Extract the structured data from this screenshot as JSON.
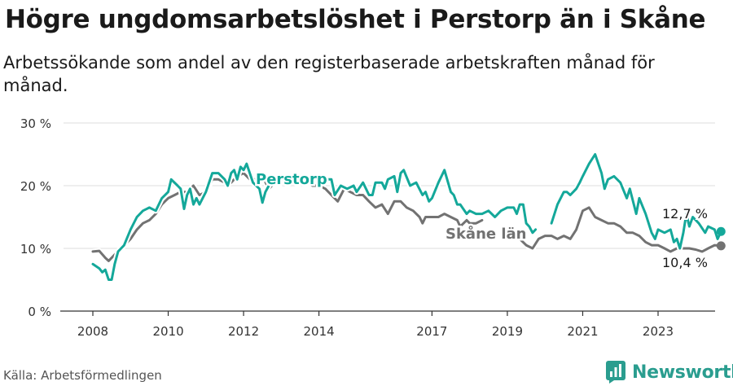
{
  "title": "Högre ungdomsarbetslöshet i Perstorp än i Skåne",
  "subtitle": "Arbetssökande som andel av den registerbaserade arbetskraften månad för månad.",
  "source": "Källa: Arbetsförmedlingen",
  "brand": "Newsworthy",
  "colors": {
    "perstorp": "#14a89a",
    "skane": "#727272",
    "grid": "#dcdcdc",
    "axis": "#333333",
    "brand": "#2a9d8f"
  },
  "chart_data": {
    "type": "line",
    "title": "Högre ungdomsarbetslöshet i Perstorp än i Skåne",
    "xlabel": "",
    "ylabel": "",
    "ylim": [
      0,
      30
    ],
    "xlim": [
      2007.4,
      2025.3
    ],
    "yticks": [
      0,
      10,
      20,
      30
    ],
    "ytick_labels": [
      "0 %",
      "10 %",
      "20 %",
      "30 %"
    ],
    "xticks": [
      2008,
      2010,
      2012,
      2014,
      2017,
      2019,
      2021,
      2023
    ],
    "xtick_labels": [
      "2008",
      "2010",
      "2012",
      "2014",
      "2017",
      "2019",
      "2021",
      "2023"
    ],
    "grid": true,
    "annotations": [
      {
        "text": "12,7 %",
        "series": "Perstorp",
        "x": 2023.75,
        "y": 12.7
      },
      {
        "text": "10,4 %",
        "series": "Skåne län",
        "x": 2023.75,
        "y": 10.4
      }
    ],
    "series": [
      {
        "name": "Perstorp",
        "label": "Perstorp",
        "color": "#14a89a",
        "points": [
          [
            2008.0,
            7.5
          ],
          [
            2008.17,
            6.8
          ],
          [
            2008.25,
            6.2
          ],
          [
            2008.33,
            6.6
          ],
          [
            2008.42,
            5.0
          ],
          [
            2008.5,
            5.0
          ],
          [
            2008.58,
            7.5
          ],
          [
            2008.67,
            9.5
          ],
          [
            2008.83,
            10.5
          ],
          [
            2009.0,
            13.0
          ],
          [
            2009.17,
            15.0
          ],
          [
            2009.33,
            16.0
          ],
          [
            2009.5,
            16.5
          ],
          [
            2009.67,
            16.0
          ],
          [
            2009.83,
            18.0
          ],
          [
            2010.0,
            19.0
          ],
          [
            2010.08,
            21.0
          ],
          [
            2010.25,
            20.0
          ],
          [
            2010.33,
            19.5
          ],
          [
            2010.42,
            16.3
          ],
          [
            2010.5,
            18.5
          ],
          [
            2010.58,
            19.5
          ],
          [
            2010.67,
            17.0
          ],
          [
            2010.75,
            18.0
          ],
          [
            2010.83,
            17.0
          ],
          [
            2011.0,
            19.0
          ],
          [
            2011.17,
            22.0
          ],
          [
            2011.33,
            22.0
          ],
          [
            2011.5,
            21.0
          ],
          [
            2011.58,
            20.0
          ],
          [
            2011.67,
            22.0
          ],
          [
            2011.75,
            22.5
          ],
          [
            2011.83,
            21.0
          ],
          [
            2011.92,
            23.0
          ],
          [
            2012.0,
            22.5
          ],
          [
            2012.08,
            23.5
          ],
          [
            2012.25,
            20.5
          ],
          [
            2012.42,
            19.5
          ],
          [
            2012.5,
            17.3
          ],
          [
            2012.58,
            19.0
          ],
          [
            2012.67,
            20.0
          ]
        ],
        "points_b": [
          [
            2014.17,
            21.0
          ],
          [
            2014.33,
            21.0
          ],
          [
            2014.42,
            18.5
          ],
          [
            2014.58,
            20.0
          ],
          [
            2014.75,
            19.5
          ],
          [
            2014.92,
            20.0
          ],
          [
            2015.0,
            19.0
          ],
          [
            2015.17,
            20.5
          ],
          [
            2015.33,
            18.5
          ],
          [
            2015.42,
            18.5
          ],
          [
            2015.5,
            20.5
          ],
          [
            2015.67,
            20.5
          ],
          [
            2015.75,
            19.5
          ],
          [
            2015.83,
            21.0
          ],
          [
            2016.0,
            21.5
          ],
          [
            2016.08,
            19.0
          ],
          [
            2016.17,
            22.0
          ],
          [
            2016.25,
            22.5
          ],
          [
            2016.42,
            20.0
          ],
          [
            2016.58,
            20.5
          ],
          [
            2016.75,
            18.5
          ],
          [
            2016.83,
            19.0
          ],
          [
            2016.92,
            17.5
          ],
          [
            2017.0,
            18.0
          ],
          [
            2017.17,
            20.5
          ],
          [
            2017.33,
            22.5
          ],
          [
            2017.5,
            19.0
          ],
          [
            2017.58,
            18.5
          ],
          [
            2017.67,
            17.0
          ],
          [
            2017.75,
            17.0
          ],
          [
            2017.92,
            15.5
          ],
          [
            2018.0,
            16.0
          ],
          [
            2018.17,
            15.5
          ],
          [
            2018.33,
            15.5
          ],
          [
            2018.5,
            16.0
          ],
          [
            2018.67,
            15.0
          ],
          [
            2018.83,
            16.0
          ],
          [
            2019.0,
            16.5
          ],
          [
            2019.17,
            16.5
          ],
          [
            2019.25,
            15.5
          ],
          [
            2019.33,
            17.0
          ],
          [
            2019.42,
            17.0
          ],
          [
            2019.5,
            14.0
          ],
          [
            2019.58,
            13.5
          ],
          [
            2019.67,
            12.5
          ],
          [
            2019.75,
            13.0
          ]
        ],
        "points_c": [
          [
            2020.17,
            14.0
          ],
          [
            2020.33,
            17.0
          ],
          [
            2020.5,
            19.0
          ],
          [
            2020.58,
            19.0
          ],
          [
            2020.67,
            18.5
          ],
          [
            2020.83,
            19.5
          ],
          [
            2020.92,
            20.5
          ],
          [
            2021.0,
            21.5
          ],
          [
            2021.17,
            23.5
          ],
          [
            2021.33,
            25.0
          ],
          [
            2021.5,
            22.0
          ],
          [
            2021.58,
            19.5
          ],
          [
            2021.67,
            21.0
          ],
          [
            2021.83,
            21.5
          ],
          [
            2022.0,
            20.5
          ],
          [
            2022.17,
            18.0
          ],
          [
            2022.25,
            19.5
          ],
          [
            2022.42,
            15.5
          ],
          [
            2022.5,
            18.0
          ],
          [
            2022.67,
            15.5
          ],
          [
            2022.83,
            12.5
          ],
          [
            2022.92,
            11.5
          ],
          [
            2023.0,
            13.0
          ],
          [
            2023.17,
            12.5
          ],
          [
            2023.33,
            13.0
          ],
          [
            2023.42,
            11.0
          ],
          [
            2023.5,
            11.5
          ],
          [
            2023.58,
            10.0
          ],
          [
            2023.67,
            12.5
          ],
          [
            2023.75,
            15.5
          ],
          [
            2023.83,
            13.5
          ],
          [
            2023.92,
            15.0
          ],
          [
            2024.08,
            14.0
          ],
          [
            2024.25,
            12.5
          ],
          [
            2024.33,
            13.5
          ],
          [
            2024.5,
            13.0
          ],
          [
            2024.58,
            11.5
          ],
          [
            2024.67,
            12.7
          ]
        ]
      },
      {
        "name": "Skåne län",
        "label": "Skåne län",
        "color": "#727272",
        "points": [
          [
            2008.0,
            9.5
          ],
          [
            2008.17,
            9.6
          ],
          [
            2008.33,
            8.5
          ],
          [
            2008.42,
            8.0
          ],
          [
            2008.58,
            9.0
          ],
          [
            2008.75,
            10.0
          ],
          [
            2009.0,
            11.5
          ],
          [
            2009.17,
            13.0
          ],
          [
            2009.33,
            14.0
          ],
          [
            2009.5,
            14.5
          ],
          [
            2009.67,
            15.5
          ],
          [
            2009.83,
            17.0
          ],
          [
            2010.0,
            18.0
          ],
          [
            2010.17,
            18.5
          ],
          [
            2010.33,
            19.0
          ],
          [
            2010.5,
            19.0
          ],
          [
            2010.67,
            20.0
          ],
          [
            2010.83,
            18.5
          ],
          [
            2011.0,
            19.0
          ],
          [
            2011.17,
            21.0
          ],
          [
            2011.33,
            21.0
          ],
          [
            2011.5,
            20.5
          ],
          [
            2011.67,
            20.5
          ],
          [
            2011.83,
            21.5
          ],
          [
            2012.0,
            22.0
          ],
          [
            2012.17,
            21.0
          ],
          [
            2012.33,
            21.0
          ],
          [
            2012.5,
            21.5
          ],
          [
            2012.67,
            19.5
          ],
          [
            2012.83,
            20.5
          ],
          [
            2013.0,
            21.0
          ],
          [
            2013.17,
            21.5
          ],
          [
            2013.33,
            21.0
          ],
          [
            2013.5,
            21.0
          ],
          [
            2013.67,
            20.5
          ],
          [
            2013.83,
            20.0
          ],
          [
            2014.0,
            20.0
          ],
          [
            2014.17,
            19.5
          ],
          [
            2014.33,
            18.5
          ],
          [
            2014.5,
            17.5
          ],
          [
            2014.67,
            19.5
          ],
          [
            2014.83,
            19.0
          ],
          [
            2015.0,
            18.5
          ],
          [
            2015.17,
            18.5
          ],
          [
            2015.33,
            17.5
          ],
          [
            2015.5,
            16.5
          ],
          [
            2015.67,
            17.0
          ],
          [
            2015.83,
            15.5
          ],
          [
            2016.0,
            17.5
          ],
          [
            2016.17,
            17.5
          ],
          [
            2016.33,
            16.5
          ],
          [
            2016.5,
            16.0
          ],
          [
            2016.67,
            15.0
          ],
          [
            2016.75,
            14.0
          ],
          [
            2016.83,
            15.0
          ],
          [
            2017.0,
            15.0
          ],
          [
            2017.17,
            15.0
          ],
          [
            2017.33,
            15.5
          ],
          [
            2017.5,
            15.0
          ],
          [
            2017.67,
            14.5
          ],
          [
            2017.75,
            13.5
          ],
          [
            2017.92,
            14.5
          ],
          [
            2018.0,
            14.0
          ],
          [
            2018.17,
            14.0
          ],
          [
            2018.33,
            14.5
          ]
        ],
        "points_b": [
          [
            2019.33,
            11.5
          ],
          [
            2019.5,
            10.5
          ],
          [
            2019.67,
            10.0
          ],
          [
            2019.83,
            11.5
          ],
          [
            2020.0,
            12.0
          ],
          [
            2020.17,
            12.0
          ],
          [
            2020.33,
            11.5
          ],
          [
            2020.5,
            12.0
          ],
          [
            2020.67,
            11.5
          ],
          [
            2020.83,
            13.0
          ],
          [
            2021.0,
            16.0
          ],
          [
            2021.17,
            16.5
          ],
          [
            2021.33,
            15.0
          ],
          [
            2021.5,
            14.5
          ],
          [
            2021.67,
            14.0
          ],
          [
            2021.83,
            14.0
          ],
          [
            2022.0,
            13.5
          ],
          [
            2022.17,
            12.5
          ],
          [
            2022.33,
            12.5
          ],
          [
            2022.5,
            12.0
          ],
          [
            2022.67,
            11.0
          ],
          [
            2022.83,
            10.5
          ],
          [
            2023.0,
            10.5
          ],
          [
            2023.17,
            10.0
          ],
          [
            2023.33,
            9.5
          ],
          [
            2023.5,
            10.0
          ],
          [
            2023.67,
            10.0
          ],
          [
            2023.83,
            10.0
          ],
          [
            2024.0,
            9.8
          ],
          [
            2024.17,
            9.5
          ],
          [
            2024.33,
            10.0
          ],
          [
            2024.5,
            10.5
          ],
          [
            2024.67,
            10.4
          ]
        ]
      }
    ]
  }
}
